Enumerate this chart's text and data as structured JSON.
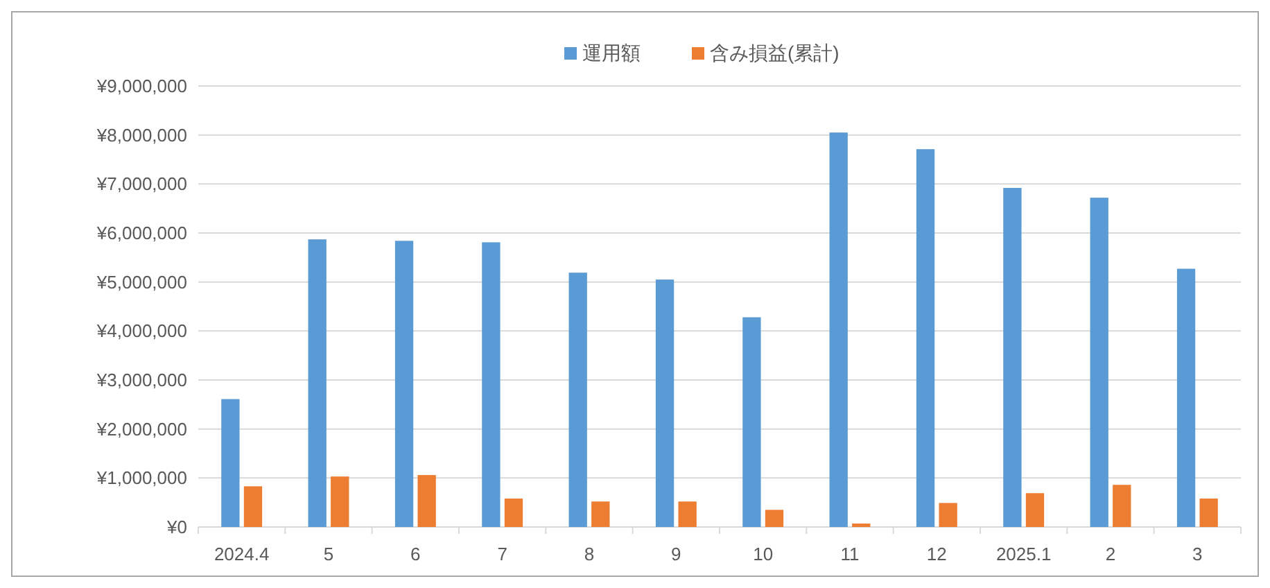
{
  "chart_data": {
    "type": "bar",
    "categories": [
      "2024.4",
      "5",
      "6",
      "7",
      "8",
      "9",
      "10",
      "11",
      "12",
      "2025.1",
      "2",
      "3"
    ],
    "series": [
      {
        "name": "運用額",
        "color": "#5b9bd5",
        "values": [
          2610000,
          5870000,
          5840000,
          5810000,
          5190000,
          5050000,
          4280000,
          8050000,
          7710000,
          6920000,
          6720000,
          5270000
        ]
      },
      {
        "name": "含み損益(累計)",
        "color": "#ed7d31",
        "values": [
          830000,
          1030000,
          1060000,
          580000,
          520000,
          520000,
          350000,
          70000,
          490000,
          690000,
          860000,
          580000
        ]
      }
    ],
    "ylim": [
      0,
      9000000
    ],
    "yticks": [
      {
        "value": 0,
        "label": "¥0"
      },
      {
        "value": 1000000,
        "label": "¥1,000,000"
      },
      {
        "value": 2000000,
        "label": "¥2,000,000"
      },
      {
        "value": 3000000,
        "label": "¥3,000,000"
      },
      {
        "value": 4000000,
        "label": "¥4,000,000"
      },
      {
        "value": 5000000,
        "label": "¥5,000,000"
      },
      {
        "value": 6000000,
        "label": "¥6,000,000"
      },
      {
        "value": 7000000,
        "label": "¥7,000,000"
      },
      {
        "value": 8000000,
        "label": "¥8,000,000"
      },
      {
        "value": 9000000,
        "label": "¥9,000,000"
      }
    ],
    "grid": "y",
    "legend": "top"
  }
}
